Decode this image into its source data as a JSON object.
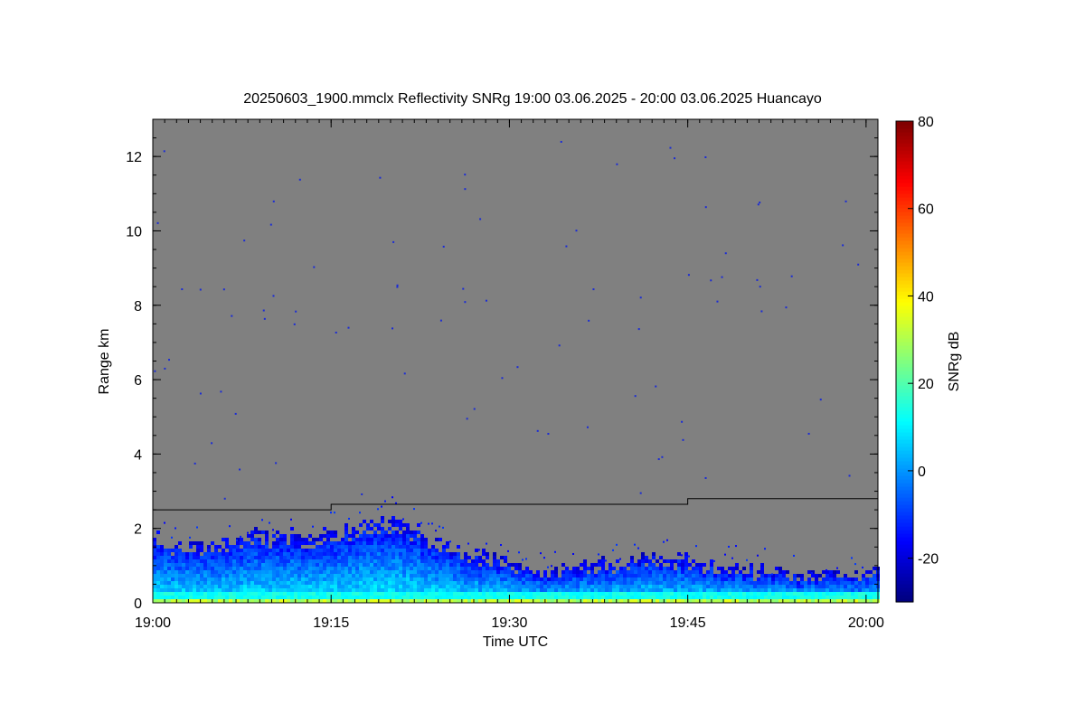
{
  "chart_data": {
    "type": "heatmap",
    "title": "20250603_1900.mmclx Reflectivity SNRg   19:00 03.06.2025 - 20:00 03.06.2025 Huancayo",
    "xlabel": "Time UTC",
    "ylabel": "Range km",
    "colorbar_label": "SNRg dB",
    "x_range": [
      "19:00",
      "20:01"
    ],
    "y_range_km": [
      0,
      13
    ],
    "x_ticks": [
      "19:00",
      "19:15",
      "19:30",
      "19:45",
      "20:00"
    ],
    "y_ticks": [
      "0",
      "2",
      "4",
      "6",
      "8",
      "10",
      "12"
    ],
    "colorbar_range_db": [
      -30,
      80
    ],
    "colorbar_ticks": [
      "-20",
      "0",
      "20",
      "40",
      "60",
      "80"
    ],
    "colormap": "jet",
    "background_no_signal_color": "#808080",
    "echo_top_km": [
      {
        "time": "19:00",
        "top": 1.8
      },
      {
        "time": "19:03",
        "top": 1.5
      },
      {
        "time": "19:06",
        "top": 1.7
      },
      {
        "time": "19:09",
        "top": 2.0
      },
      {
        "time": "19:12",
        "top": 1.8
      },
      {
        "time": "19:15",
        "top": 1.9
      },
      {
        "time": "19:18",
        "top": 2.2
      },
      {
        "time": "19:21",
        "top": 2.2
      },
      {
        "time": "19:24",
        "top": 1.6
      },
      {
        "time": "19:27",
        "top": 1.3
      },
      {
        "time": "19:30",
        "top": 1.1
      },
      {
        "time": "19:33",
        "top": 0.9
      },
      {
        "time": "19:36",
        "top": 1.0
      },
      {
        "time": "19:39",
        "top": 1.1
      },
      {
        "time": "19:42",
        "top": 1.2
      },
      {
        "time": "19:45",
        "top": 1.2
      },
      {
        "time": "19:48",
        "top": 1.0
      },
      {
        "time": "19:51",
        "top": 0.9
      },
      {
        "time": "19:54",
        "top": 0.8
      },
      {
        "time": "19:57",
        "top": 0.8
      },
      {
        "time": "20:00",
        "top": 0.8
      }
    ],
    "threshold_line_km": [
      {
        "from": "19:00",
        "to": "19:15",
        "value": 2.5
      },
      {
        "from": "19:15",
        "to": "19:45",
        "value": 2.65
      },
      {
        "from": "19:45",
        "to": "20:01",
        "value": 2.8
      }
    ],
    "grid": false
  }
}
